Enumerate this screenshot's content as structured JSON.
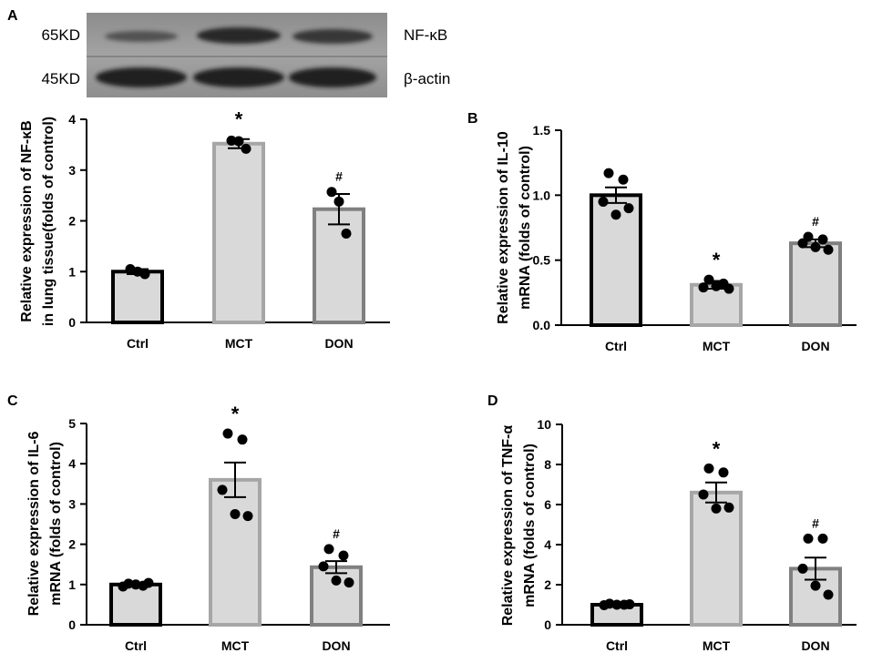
{
  "chart_data": [
    {
      "panel": "A",
      "type": "bar",
      "categories": [
        "Ctrl",
        "MCT",
        "DON"
      ],
      "values": [
        1.0,
        3.52,
        2.23
      ],
      "errors": [
        0.05,
        0.09,
        0.3
      ],
      "points": [
        [
          1.05,
          0.95,
          1.0
        ],
        [
          3.58,
          3.42,
          3.57
        ],
        [
          2.57,
          1.75,
          2.38
        ]
      ],
      "markers": [
        "",
        "*",
        "#"
      ],
      "ylabel_lines": [
        "Relative expression of NF-κB",
        "in lung tissue(folds of control)"
      ],
      "ylim": [
        0,
        4
      ],
      "yticks": [
        "0",
        "1",
        "2",
        "3",
        "4"
      ],
      "blot": {
        "rows": [
          {
            "size": "65KD",
            "protein": "NF-κB"
          },
          {
            "size": "45KD",
            "protein": "β-actin"
          }
        ]
      }
    },
    {
      "panel": "B",
      "type": "bar",
      "categories": [
        "Ctrl",
        "MCT",
        "DON"
      ],
      "values": [
        1.0,
        0.31,
        0.63
      ],
      "errors": [
        0.06,
        0.03,
        0.03
      ],
      "points": [
        [
          1.17,
          1.12,
          0.95,
          0.85,
          0.9
        ],
        [
          0.35,
          0.32,
          0.29,
          0.3,
          0.28
        ],
        [
          0.68,
          0.66,
          0.63,
          0.6,
          0.58
        ]
      ],
      "markers": [
        "",
        "*",
        "#"
      ],
      "ylabel_lines": [
        "Relative expression of IL-10",
        "mRNA (folds of control)"
      ],
      "ylim": [
        0,
        1.5
      ],
      "yticks": [
        "0.0",
        "0.5",
        "1.0",
        "1.5"
      ]
    },
    {
      "panel": "C",
      "type": "bar",
      "categories": [
        "Ctrl",
        "MCT",
        "DON"
      ],
      "values": [
        1.0,
        3.6,
        1.43
      ],
      "errors": [
        0.04,
        0.43,
        0.15
      ],
      "points": [
        [
          1.02,
          0.97,
          0.95,
          1.0,
          1.04
        ],
        [
          4.75,
          4.6,
          3.35,
          2.75,
          2.7
        ],
        [
          1.88,
          1.72,
          1.45,
          1.1,
          1.05
        ]
      ],
      "markers": [
        "",
        "*",
        "#"
      ],
      "ylabel_lines": [
        "Relative expression of IL-6",
        "mRNA (folds of control)"
      ],
      "ylim": [
        0,
        5
      ],
      "yticks": [
        "0",
        "1",
        "2",
        "3",
        "4",
        "5"
      ]
    },
    {
      "panel": "D",
      "type": "bar",
      "categories": [
        "Ctrl",
        "MCT",
        "DON"
      ],
      "values": [
        1.0,
        6.6,
        2.8
      ],
      "errors": [
        0.05,
        0.5,
        0.55
      ],
      "points": [
        [
          1.05,
          1.0,
          0.98,
          1.0,
          1.02
        ],
        [
          7.8,
          7.6,
          6.5,
          5.8,
          5.85
        ],
        [
          4.3,
          4.3,
          2.8,
          1.95,
          1.5
        ]
      ],
      "markers": [
        "",
        "*",
        "#"
      ],
      "ylabel_lines": [
        "Relative expression of TNF-α",
        "mRNA (folds of control)"
      ],
      "ylim": [
        0,
        10
      ],
      "yticks": [
        "0",
        "2",
        "4",
        "6",
        "8",
        "10"
      ]
    }
  ],
  "colors": {
    "bar_fill": "#d9d9d9",
    "ctrl_stroke": "#000000",
    "mct_stroke": "#a6a6a6",
    "don_stroke": "#808080",
    "point": "#000000",
    "axis": "#000000"
  }
}
